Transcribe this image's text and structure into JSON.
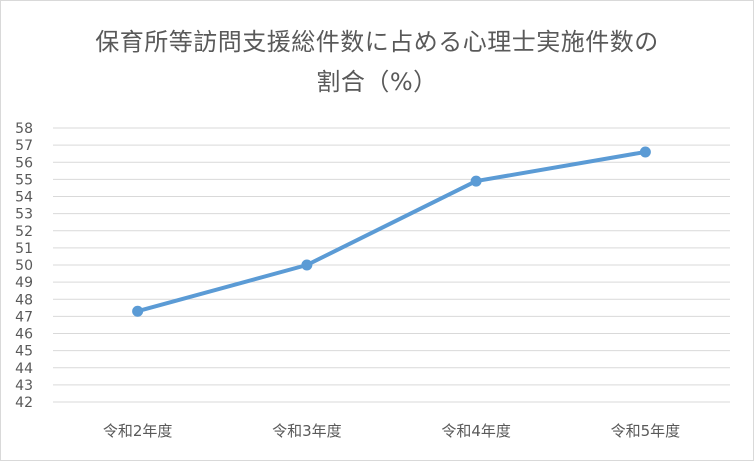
{
  "chart_data": {
    "type": "line",
    "title_line1": "保育所等訪問支援総件数に占める心理士実施件数の",
    "title_line2": "割合（%）",
    "categories": [
      "令和2年度",
      "令和3年度",
      "令和4年度",
      "令和5年度"
    ],
    "series": [
      {
        "values": [
          47.3,
          50.0,
          54.9,
          56.6
        ],
        "color": "#5b9bd5"
      }
    ],
    "ylim": [
      42,
      58
    ],
    "ytick_step": 1,
    "grid": true,
    "legend": "none"
  }
}
